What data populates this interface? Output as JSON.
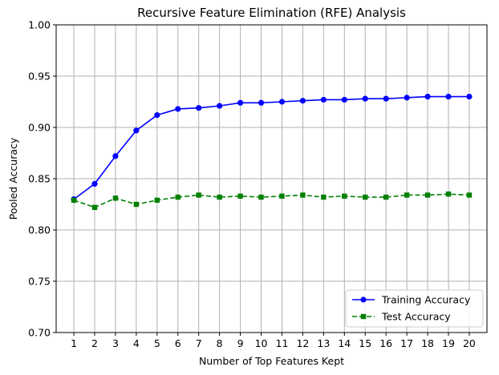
{
  "chart_data": {
    "type": "line",
    "title": "Recursive Feature Elimination (RFE) Analysis",
    "xlabel": "Number of Top Features Kept",
    "ylabel": "Pooled Accuracy",
    "x": [
      1,
      2,
      3,
      4,
      5,
      6,
      7,
      8,
      9,
      10,
      11,
      12,
      13,
      14,
      15,
      16,
      17,
      18,
      19,
      20
    ],
    "ylim": [
      0.7,
      1.0
    ],
    "yticks": [
      "0.70",
      "0.75",
      "0.80",
      "0.85",
      "0.90",
      "0.95",
      "1.00"
    ],
    "grid": true,
    "legend_position": "lower-right",
    "series": [
      {
        "name": "Training Accuracy",
        "color": "#0000ff",
        "marker": "circle",
        "linestyle": "solid",
        "values": [
          0.83,
          0.845,
          0.872,
          0.897,
          0.912,
          0.918,
          0.919,
          0.921,
          0.924,
          0.924,
          0.925,
          0.926,
          0.927,
          0.927,
          0.928,
          0.928,
          0.929,
          0.93,
          0.93,
          0.93
        ]
      },
      {
        "name": "Test Accuracy",
        "color": "#008000",
        "marker": "square",
        "linestyle": "dashed",
        "values": [
          0.829,
          0.822,
          0.831,
          0.825,
          0.829,
          0.832,
          0.834,
          0.832,
          0.833,
          0.832,
          0.833,
          0.834,
          0.832,
          0.833,
          0.832,
          0.832,
          0.834,
          0.834,
          0.835,
          0.834
        ]
      }
    ]
  }
}
